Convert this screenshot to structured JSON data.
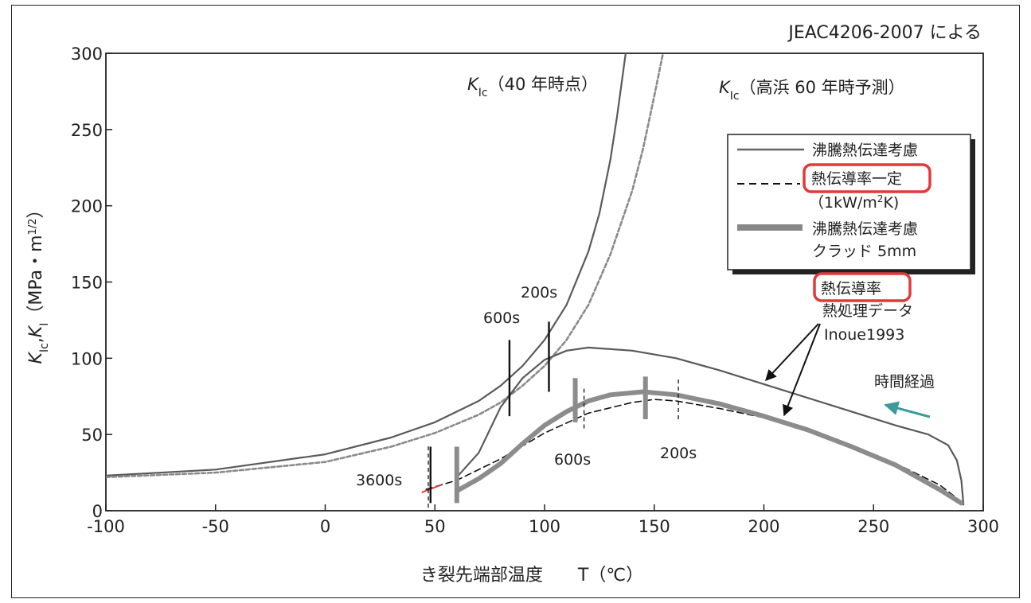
{
  "chart_data": {
    "type": "line",
    "title": "JEAC4206-2007 による",
    "xlabel": "き裂先端部温度　　T（℃）",
    "ylabel_parts": [
      "K",
      "Ic",
      ",",
      "K",
      "I",
      "（MPa・m",
      "1/2",
      "）"
    ],
    "xlim": [
      -100,
      300
    ],
    "ylim": [
      0,
      300
    ],
    "xticks": [
      "-100",
      "-50",
      "0",
      "50",
      "100",
      "150",
      "200",
      "250",
      "300"
    ],
    "yticks": [
      "0",
      "50",
      "100",
      "150",
      "200",
      "250",
      "300"
    ],
    "grid": false,
    "legend_position": "upper-right",
    "legend": [
      {
        "label": "沸騰熱伝達考慮",
        "style": "thin-solid"
      },
      {
        "label": "熱伝導率一定",
        "label2": "（1kW/m",
        "label2_sup": "2",
        "label2_end": "K)",
        "style": "dashed",
        "highlighted": true
      },
      {
        "label": "沸騰熱伝達考慮",
        "label2": "クラッド 5mm",
        "style": "thick-solid"
      }
    ],
    "curve_labels": {
      "kic40_k": "K",
      "kic40_sub": "Ic",
      "kic40_rest": "（40 年時点）",
      "kic60_k": "K",
      "kic60_sub": "Ic",
      "kic60_rest": "（高浜 60 年時予測）"
    },
    "annotations": {
      "conductivity_highlight": "熱伝導率",
      "conductivity_line2": "熱処理データ",
      "conductivity_line3": "Inoue1993",
      "time_elapsed": "時間経過",
      "t3600": "3600s",
      "t600_top": "600s",
      "t200_top": "200s",
      "t600_bottom": "600s",
      "t200_bottom": "200s"
    },
    "series": [
      {
        "name": "K Ic（40 年時点）",
        "style": "thin-solid",
        "points": [
          [
            -100,
            23
          ],
          [
            -50,
            27
          ],
          [
            0,
            37
          ],
          [
            30,
            48
          ],
          [
            50,
            58
          ],
          [
            70,
            72
          ],
          [
            80,
            82
          ],
          [
            90,
            95
          ],
          [
            100,
            112
          ],
          [
            110,
            135
          ],
          [
            120,
            170
          ],
          [
            125,
            195
          ],
          [
            130,
            230
          ],
          [
            133,
            258
          ],
          [
            137,
            300
          ]
        ]
      },
      {
        "name": "K Ic（高浜 60 年時予測）",
        "style": "dotted",
        "points": [
          [
            -100,
            22
          ],
          [
            -50,
            25
          ],
          [
            0,
            32
          ],
          [
            30,
            42
          ],
          [
            50,
            51
          ],
          [
            70,
            63
          ],
          [
            80,
            71
          ],
          [
            90,
            82
          ],
          [
            100,
            95
          ],
          [
            110,
            112
          ],
          [
            120,
            135
          ],
          [
            130,
            168
          ],
          [
            140,
            210
          ],
          [
            145,
            238
          ],
          [
            150,
            272
          ],
          [
            154,
            300
          ]
        ]
      },
      {
        "name": "沸騰熱伝達考慮",
        "style": "thin-solid",
        "points": [
          [
            60,
            22
          ],
          [
            70,
            38
          ],
          [
            80,
            68
          ],
          [
            90,
            87
          ],
          [
            100,
            99
          ],
          [
            110,
            105
          ],
          [
            120,
            107
          ],
          [
            140,
            105
          ],
          [
            160,
            100
          ],
          [
            180,
            92
          ],
          [
            200,
            83
          ],
          [
            220,
            74
          ],
          [
            240,
            65
          ],
          [
            260,
            56
          ],
          [
            275,
            50
          ],
          [
            284,
            43
          ],
          [
            288,
            33
          ],
          [
            290,
            20
          ],
          [
            291,
            4
          ]
        ]
      },
      {
        "name": "熱伝導率一定",
        "style": "dashed",
        "points": [
          [
            46,
            14
          ],
          [
            60,
            20
          ],
          [
            80,
            34
          ],
          [
            100,
            51
          ],
          [
            120,
            64
          ],
          [
            140,
            71
          ],
          [
            150,
            73
          ],
          [
            160,
            72
          ],
          [
            180,
            67
          ],
          [
            200,
            61
          ],
          [
            220,
            52
          ],
          [
            240,
            42
          ],
          [
            260,
            31
          ],
          [
            280,
            17
          ],
          [
            290,
            6
          ]
        ]
      },
      {
        "name": "沸騰熱伝達考慮 クラッド 5mm",
        "style": "thick-solid",
        "points": [
          [
            60,
            13
          ],
          [
            70,
            21
          ],
          [
            80,
            31
          ],
          [
            90,
            44
          ],
          [
            100,
            56
          ],
          [
            110,
            65
          ],
          [
            120,
            72
          ],
          [
            130,
            76
          ],
          [
            145,
            78
          ],
          [
            160,
            76
          ],
          [
            180,
            70
          ],
          [
            200,
            62
          ],
          [
            220,
            53
          ],
          [
            240,
            42
          ],
          [
            260,
            30
          ],
          [
            280,
            14
          ],
          [
            290,
            5
          ]
        ]
      }
    ],
    "time_markers": [
      {
        "x": 47,
        "y0": 2,
        "y1": 43,
        "style": "dashed"
      },
      {
        "x": 48,
        "y0": 5,
        "y1": 42,
        "style": "thin"
      },
      {
        "x": 60,
        "y0": 5,
        "y1": 42,
        "style": "thick"
      },
      {
        "x": 84,
        "y0": 62,
        "y1": 112,
        "style": "thin"
      },
      {
        "x": 102,
        "y0": 78,
        "y1": 124,
        "style": "thin"
      },
      {
        "x": 114,
        "y0": 58,
        "y1": 87,
        "style": "thick"
      },
      {
        "x": 118,
        "y0": 54,
        "y1": 80,
        "style": "dashed"
      },
      {
        "x": 146,
        "y0": 60,
        "y1": 88,
        "style": "thick"
      },
      {
        "x": 161,
        "y0": 60,
        "y1": 86,
        "style": "dashed"
      }
    ]
  }
}
